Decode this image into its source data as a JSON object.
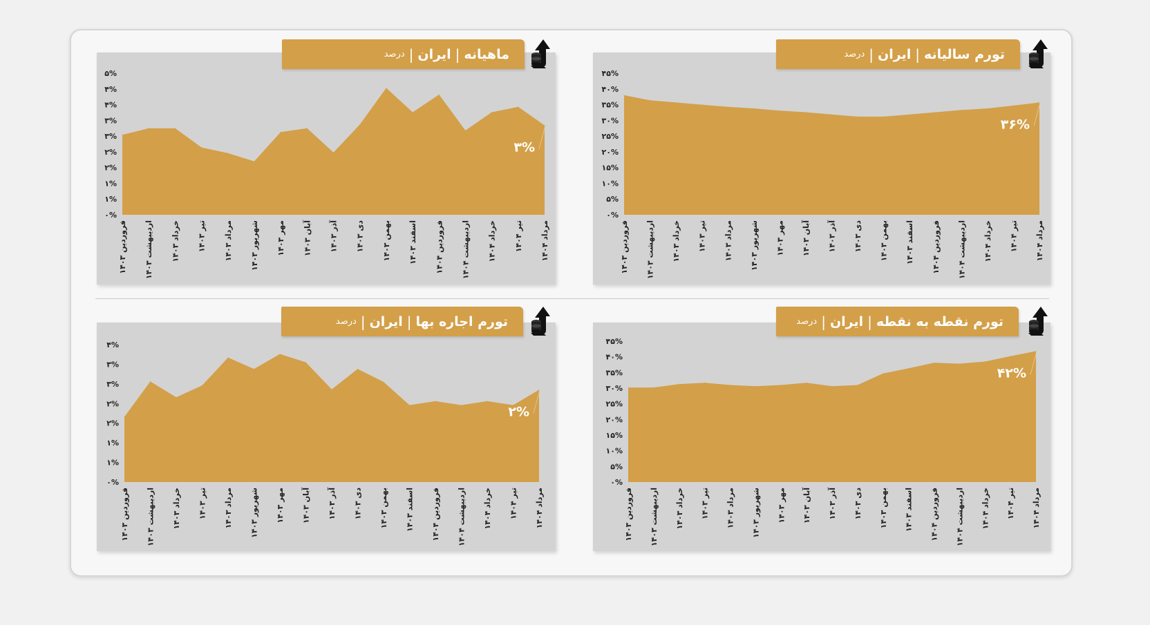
{
  "colors": {
    "fill": "#d39f48",
    "plot_bg": "#d3d3d3",
    "title_bg": "#d39f48",
    "icon": "#111111"
  },
  "icon_name": "coins-up-arrow-icon",
  "chart_data": [
    {
      "type": "area",
      "title": "تورم سالیانه",
      "region": "ایران",
      "unit": "درصد",
      "separator": "|",
      "categories": [
        "فروردین ۱۴۰۳",
        "اردیبهشت ۱۴۰۳",
        "خرداد ۱۴۰۳",
        "تیر ۱۴۰۳",
        "مرداد ۱۴۰۳",
        "شهریور ۱۴۰۳",
        "مهر ۱۴۰۳",
        "آبان ۱۴۰۳",
        "آذر ۱۴۰۳",
        "دی ۱۴۰۳",
        "بهمن ۱۴۰۳",
        "اسفند ۱۴۰۳",
        "فروردین ۱۴۰۴",
        "اردیبهشت ۱۴۰۴",
        "خرداد ۱۴۰۴",
        "تیر ۱۴۰۴",
        "مرداد ۱۴۰۴"
      ],
      "values": [
        38.0,
        36.4,
        35.7,
        35.0,
        34.3,
        33.8,
        33.1,
        32.6,
        31.9,
        31.2,
        31.2,
        31.9,
        32.6,
        33.3,
        33.8,
        34.7,
        35.7
      ],
      "ylim": [
        0,
        45
      ],
      "y_tick_labels": [
        "۰%",
        "۵%",
        "۱۰%",
        "۱۵%",
        "۲۰%",
        "۲۵%",
        "۳۰%",
        "۳۵%",
        "۴۰%",
        "۴۵%"
      ],
      "last_value_label": "۳۶%",
      "grid": false,
      "legend": "none"
    },
    {
      "type": "area",
      "title": "ماهیانه",
      "region": "ایران",
      "unit": "درصد",
      "separator": "|",
      "categories": [
        "فروردین ۱۴۰۳",
        "اردیبهشت ۱۴۰۳",
        "خرداد ۱۴۰۳",
        "تیر ۱۴۰۳",
        "مرداد ۱۴۰۳",
        "شهریور ۱۴۰۳",
        "مهر ۱۴۰۳",
        "آبان ۱۴۰۳",
        "آذر ۱۴۰۳",
        "دی ۱۴۰۳",
        "بهمن ۱۴۰۳",
        "اسفند ۱۴۰۳",
        "فروردین ۱۴۰۴",
        "اردیبهشت ۱۴۰۴",
        "خرداد ۱۴۰۴",
        "تیر ۱۴۰۴",
        "مرداد ۱۴۰۴"
      ],
      "values": [
        2.54,
        2.75,
        2.75,
        2.14,
        1.96,
        1.7,
        2.63,
        2.75,
        1.98,
        2.87,
        4.03,
        3.26,
        3.82,
        2.68,
        3.26,
        3.43,
        2.84
      ],
      "ylim": [
        0,
        4.5
      ],
      "y_tick_labels": [
        "۰%",
        "۱%",
        "۱%",
        "۲%",
        "۲%",
        "۳%",
        "۳%",
        "۴%",
        "۴%",
        "۵%"
      ],
      "last_value_label": "۳%",
      "grid": false,
      "legend": "none"
    },
    {
      "type": "area",
      "title": "تورم نقطه به نقطه",
      "region": "ایران",
      "unit": "درصد",
      "separator": "|",
      "categories": [
        "فروردین ۱۴۰۳",
        "اردیبهشت ۱۴۰۳",
        "خرداد ۱۴۰۳",
        "تیر ۱۴۰۳",
        "مرداد ۱۴۰۳",
        "شهریور ۱۴۰۳",
        "مهر ۱۴۰۳",
        "آبان ۱۴۰۳",
        "آذر ۱۴۰۳",
        "دی ۱۴۰۳",
        "بهمن ۱۴۰۳",
        "اسفند ۱۴۰۳",
        "فروردین ۱۴۰۴",
        "اردیبهشت ۱۴۰۴",
        "خرداد ۱۴۰۴",
        "تیر ۱۴۰۴",
        "مرداد ۱۴۰۴"
      ],
      "values": [
        30.2,
        30.2,
        31.3,
        31.7,
        31.0,
        30.6,
        31.0,
        31.7,
        30.6,
        31.0,
        34.7,
        36.3,
        38.1,
        37.8,
        38.5,
        40.2,
        41.8
      ],
      "ylim": [
        0,
        45
      ],
      "y_tick_labels": [
        "۰%",
        "۵%",
        "۱۰%",
        "۱۵%",
        "۲۰%",
        "۲۵%",
        "۳۰%",
        "۳۵%",
        "۴۰%",
        "۴۵%"
      ],
      "last_value_label": "۴۲%",
      "grid": false,
      "legend": "none"
    },
    {
      "type": "area",
      "title": "تورم اجاره بها",
      "region": "ایران",
      "unit": "درصد",
      "separator": "|",
      "categories": [
        "فروردین ۱۴۰۳",
        "اردیبهشت ۱۴۰۳",
        "خرداد ۱۴۰۳",
        "تیر ۱۴۰۳",
        "مرداد ۱۴۰۳",
        "شهریور ۱۴۰۳",
        "مهر ۱۴۰۳",
        "آبان ۱۴۰۳",
        "آذر ۱۴۰۳",
        "دی ۱۴۰۳",
        "بهمن ۱۴۰۳",
        "اسفند ۱۴۰۳",
        "فروردین ۱۴۰۴",
        "اردیبهشت ۱۴۰۴",
        "خرداد ۱۴۰۴",
        "تیر ۱۴۰۴",
        "مرداد ۱۴۰۴"
      ],
      "values": [
        1.66,
        2.56,
        2.16,
        2.46,
        3.17,
        2.88,
        3.26,
        3.05,
        2.36,
        2.88,
        2.55,
        1.96,
        2.06,
        1.96,
        2.06,
        1.96,
        2.35
      ],
      "ylim": [
        0,
        3.5
      ],
      "y_tick_labels": [
        "۰%",
        "۱%",
        "۱%",
        "۲%",
        "۲%",
        "۳%",
        "۳%",
        "۴%"
      ],
      "last_value_label": "۲%",
      "grid": false,
      "legend": "none"
    }
  ]
}
